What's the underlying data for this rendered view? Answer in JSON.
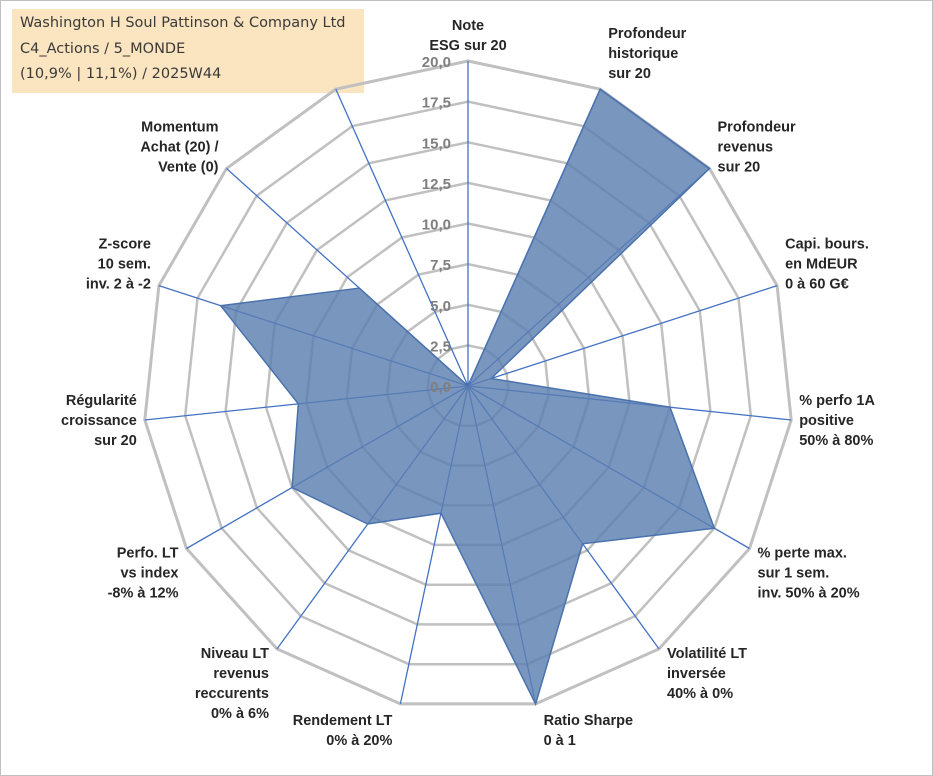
{
  "header": {
    "company": "Washington H Soul Pattinson & Company Ltd",
    "category": "C4_Actions / 5_MONDE",
    "stats": "(10,9% | 11,1%) / 2025W44"
  },
  "colors": {
    "fill": "#5b7fb1",
    "stroke": "#4a72ad",
    "axis": "#4472c4",
    "grid": "#c0c0c0",
    "title_bg": "#fbe5c0"
  },
  "chart_data": {
    "type": "radar",
    "rmin": 0,
    "rmax": 20,
    "tick_step": 2.5,
    "tick_labels": [
      "0,0",
      "2,5",
      "5,0",
      "7,5",
      "10,0",
      "12,5",
      "15,0",
      "17,5",
      "20,0"
    ],
    "axes": [
      {
        "lines": [
          "Note",
          "ESG sur 20"
        ],
        "value": 0
      },
      {
        "lines": [
          "Profondeur",
          "historique",
          "sur 20"
        ],
        "value": 20
      },
      {
        "lines": [
          "Profondeur",
          "revenus",
          "sur 20"
        ],
        "value": 20
      },
      {
        "lines": [
          "Capi. bours.",
          "en MdEUR",
          "0 à 60 G€"
        ],
        "value": 1.5
      },
      {
        "lines": [
          "% perfo 1A",
          "positive",
          "50% à 80%"
        ],
        "value": 12.5
      },
      {
        "lines": [
          "% perte max.",
          "sur 1 sem.",
          "inv. 50% à 20%"
        ],
        "value": 17.5
      },
      {
        "lines": [
          "Volatilité LT",
          "inversée",
          "40% à 0%"
        ],
        "value": 12
      },
      {
        "lines": [
          "Ratio Sharpe",
          "0 à 1"
        ],
        "value": 20
      },
      {
        "lines": [
          "Rendement LT",
          "0% à 20%"
        ],
        "value": 8
      },
      {
        "lines": [
          "Niveau LT",
          "revenus",
          "reccurents",
          "0% à 6%"
        ],
        "value": 10.5
      },
      {
        "lines": [
          "Perfo. LT",
          "vs index",
          "-8% à 12%"
        ],
        "value": 12.5
      },
      {
        "lines": [
          "Régularité",
          "croissance",
          "sur 20"
        ],
        "value": 10.5
      },
      {
        "lines": [
          "Z-score",
          "10 sem.",
          "inv. 2 à -2"
        ],
        "value": 16
      },
      {
        "lines": [
          "Momentum",
          "Achat (20) /",
          "Vente (0)"
        ],
        "value": 9
      },
      {
        "lines": [],
        "value": 0
      }
    ]
  }
}
